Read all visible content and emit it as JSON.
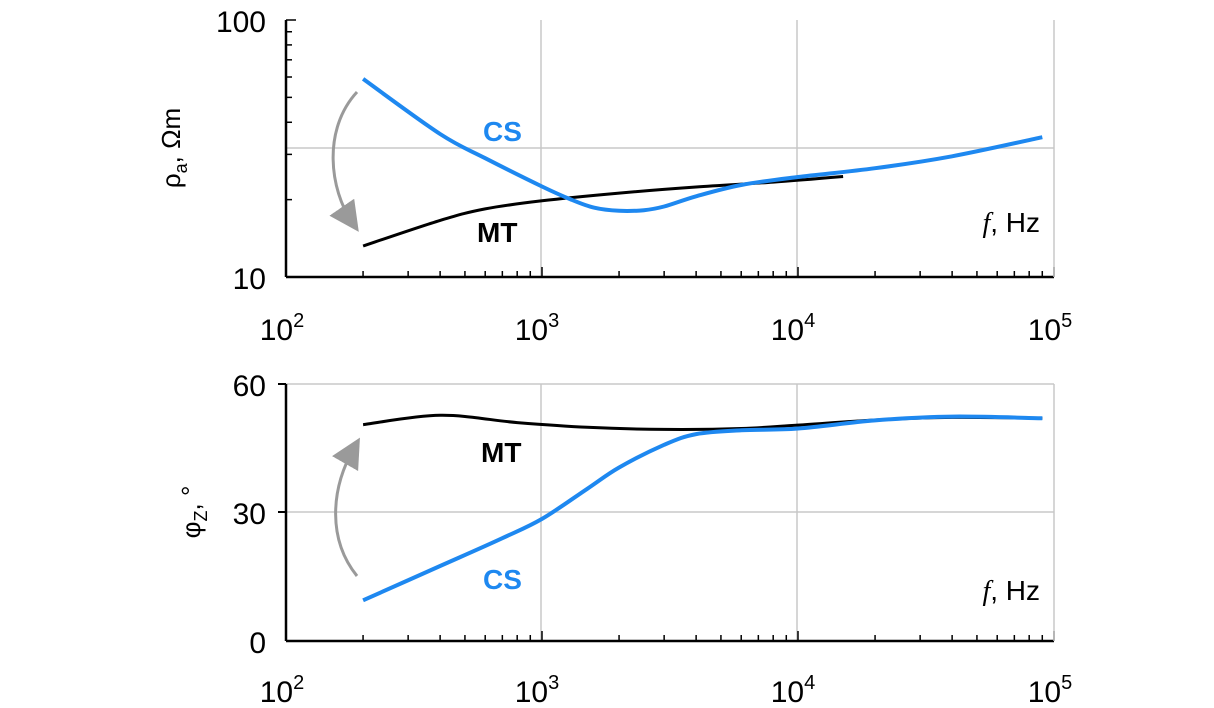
{
  "colors": {
    "MT": "#000000",
    "CS": "#1e88f0",
    "arrow": "#9a9a9a",
    "grid": "#c8c8c8"
  },
  "chart_data": [
    {
      "type": "line",
      "xscale": "log",
      "yscale": "log",
      "xlim": [
        100,
        100000
      ],
      "ylim": [
        10,
        100
      ],
      "x_tick_labels": [
        {
          "base": "10",
          "exp": "2"
        },
        {
          "base": "10",
          "exp": "3"
        },
        {
          "base": "10",
          "exp": "4"
        },
        {
          "base": "10",
          "exp": "5"
        }
      ],
      "y_tick_labels": [
        "10",
        "100"
      ],
      "ylabel": {
        "main": "ρ",
        "sub": "a",
        "rest": ", Ωm"
      },
      "xlabel": {
        "f": "f",
        "rest": ", Hz"
      },
      "grid": true,
      "series": [
        {
          "name": "CS",
          "points": [
            [
              200,
              59
            ],
            [
              400,
              36
            ],
            [
              600,
              29
            ],
            [
              1000,
              22.5
            ],
            [
              1300,
              20
            ],
            [
              1600,
              18.6
            ],
            [
              2000,
              18.1
            ],
            [
              2500,
              18.2
            ],
            [
              3000,
              18.8
            ],
            [
              4000,
              20.6
            ],
            [
              6000,
              22.8
            ],
            [
              10000,
              24.5
            ],
            [
              20000,
              26.5
            ],
            [
              40000,
              29.5
            ],
            [
              90000,
              35
            ]
          ]
        },
        {
          "name": "MT",
          "points": [
            [
              200,
              13.2
            ],
            [
              400,
              16.6
            ],
            [
              600,
              18.4
            ],
            [
              1000,
              19.8
            ],
            [
              2000,
              21.2
            ],
            [
              4000,
              22.4
            ],
            [
              8000,
              23.4
            ],
            [
              15000,
              24.6
            ]
          ]
        }
      ],
      "arrow": "curved arrow from CS start toward MT start"
    },
    {
      "type": "line",
      "xscale": "log",
      "yscale": "linear",
      "xlim": [
        100,
        100000
      ],
      "ylim": [
        0,
        60
      ],
      "y_ticks": [
        0,
        30,
        60
      ],
      "y_tick_labels": [
        "0",
        "30",
        "60"
      ],
      "x_tick_labels": [
        {
          "base": "10",
          "exp": "2"
        },
        {
          "base": "10",
          "exp": "3"
        },
        {
          "base": "10",
          "exp": "4"
        },
        {
          "base": "10",
          "exp": "5"
        }
      ],
      "ylabel": {
        "main": "φ",
        "sub": "Z",
        "rest": ", °"
      },
      "xlabel": {
        "f": "f",
        "rest": ", Hz"
      },
      "grid": true,
      "series": [
        {
          "name": "MT",
          "points": [
            [
              200,
              50.5
            ],
            [
              400,
              52.7
            ],
            [
              800,
              51
            ],
            [
              1500,
              49.9
            ],
            [
              3000,
              49.4
            ],
            [
              6000,
              49.6
            ],
            [
              10000,
              50.4
            ],
            [
              20000,
              51.6
            ],
            [
              40000,
              52.2
            ],
            [
              90000,
              52
            ]
          ]
        },
        {
          "name": "CS",
          "points": [
            [
              200,
              9.5
            ],
            [
              400,
              17.5
            ],
            [
              700,
              24
            ],
            [
              1000,
              28.5
            ],
            [
              1500,
              35.5
            ],
            [
              2000,
              40.5
            ],
            [
              3000,
              45.8
            ],
            [
              4000,
              48.3
            ],
            [
              6000,
              49.2
            ],
            [
              10000,
              49.6
            ],
            [
              20000,
              51.5
            ],
            [
              40000,
              52.4
            ],
            [
              90000,
              52
            ]
          ]
        }
      ],
      "arrow": "curved arrow from CS start toward MT start"
    }
  ]
}
